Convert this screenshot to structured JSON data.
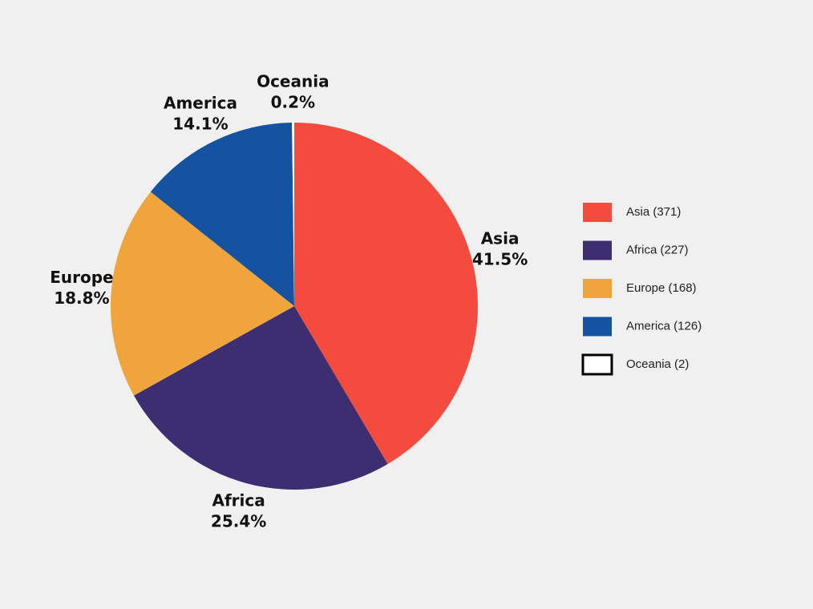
{
  "chart_data": {
    "type": "pie",
    "categories": [
      "Asia",
      "Africa",
      "Europe",
      "America",
      "Oceania"
    ],
    "values": [
      41.5,
      25.4,
      18.8,
      14.1,
      0.2
    ],
    "value_labels": [
      "41.5%",
      "25.4%",
      "18.8%",
      "14.1%",
      "0.2%"
    ],
    "legend_labels": [
      "Asia (371)",
      "Africa (227)",
      "Europe (168)",
      "America (126)",
      "Oceania (2)"
    ],
    "colors": [
      "#f44b3f",
      "#3d2e72",
      "#f0a43c",
      "#1553a0",
      "#ffffff"
    ],
    "legend": "right"
  }
}
